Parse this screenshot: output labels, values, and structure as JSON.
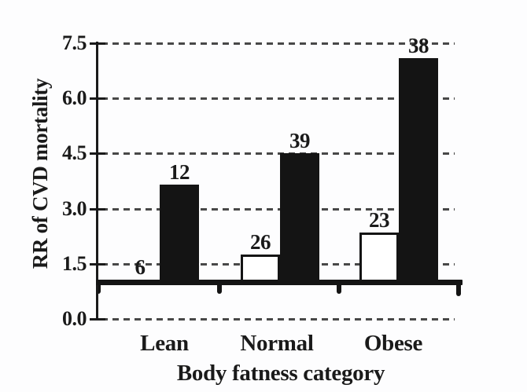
{
  "chart_data": {
    "type": "bar",
    "title": "",
    "ylabel": "RR of CVD mortality",
    "xlabel": "Body fatness category",
    "categories": [
      "Lean",
      "Normal",
      "Obese"
    ],
    "series": [
      {
        "style": "open",
        "fill": "#ffffff",
        "values": [
          1.0,
          1.75,
          2.35
        ],
        "bar_labels": [
          "6",
          "26",
          "23"
        ]
      },
      {
        "style": "filled",
        "fill": "#141414",
        "values": [
          3.65,
          4.5,
          7.1
        ],
        "bar_labels": [
          "12",
          "39",
          "38"
        ]
      }
    ],
    "baseline_value": 1.0,
    "yticks": [
      0.0,
      1.5,
      3.0,
      4.5,
      6.0,
      7.5
    ],
    "ytick_labels": [
      "0.0",
      "1.5",
      "3.0",
      "4.5",
      "6.0",
      "7.5"
    ],
    "ylim": [
      0,
      7.5
    ],
    "grid": "dashed-horizontal",
    "legend": "none",
    "colors": {
      "ink": "#1a1a1a",
      "grid": "#383838",
      "bar_filled": "#141414",
      "bar_open": "#ffffff"
    }
  }
}
